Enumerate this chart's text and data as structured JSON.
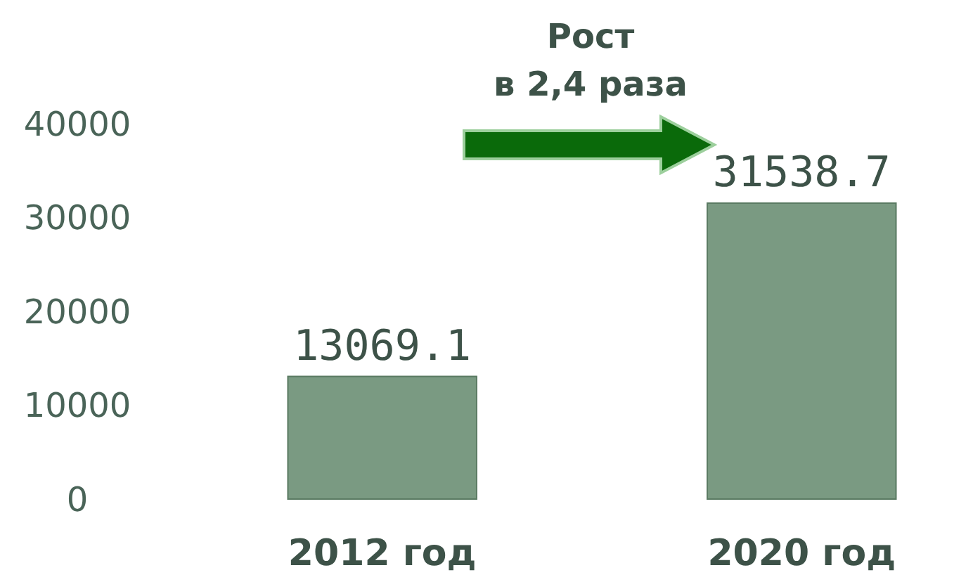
{
  "chart_data": {
    "type": "bar",
    "categories": [
      "2012 год",
      "2020 год"
    ],
    "values": [
      13069.1,
      31538.7
    ],
    "color": "#7a9a82",
    "ylim": [
      0,
      40000
    ],
    "yticks": [
      0,
      10000,
      20000,
      30000,
      40000
    ],
    "grid": false,
    "data_labels": true,
    "annotations": [
      "Рост\nв 2,4 раза"
    ]
  }
}
